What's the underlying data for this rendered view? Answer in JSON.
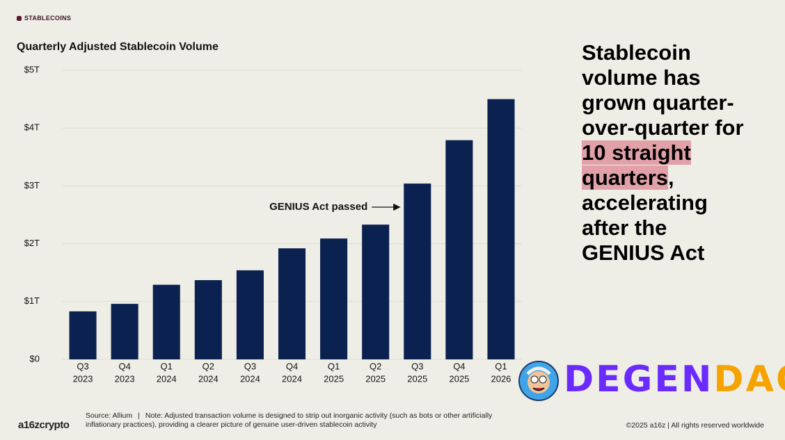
{
  "tag": "STABLECOINS",
  "chart_data": {
    "type": "bar",
    "title": "Quarterly Adjusted Stablecoin Volume",
    "categories": [
      [
        "Q3",
        "2023"
      ],
      [
        "Q4",
        "2023"
      ],
      [
        "Q1",
        "2024"
      ],
      [
        "Q2",
        "2024"
      ],
      [
        "Q3",
        "2024"
      ],
      [
        "Q4",
        "2024"
      ],
      [
        "Q1",
        "2025"
      ],
      [
        "Q2",
        "2025"
      ],
      [
        "Q3",
        "2025"
      ],
      [
        "Q4",
        "2025"
      ],
      [
        "Q1",
        "2026"
      ]
    ],
    "values": [
      0.83,
      0.96,
      1.29,
      1.37,
      1.54,
      1.92,
      2.09,
      2.33,
      3.04,
      3.79,
      4.5
    ],
    "color": "#0b2150",
    "ylim": [
      0,
      5
    ],
    "yticks": [
      {
        "value": 0,
        "label": "$0"
      },
      {
        "value": 1,
        "label": "$1T"
      },
      {
        "value": 2,
        "label": "$2T"
      },
      {
        "value": 3,
        "label": "$3T"
      },
      {
        "value": 4,
        "label": "$4T"
      },
      {
        "value": 5,
        "label": "$5T"
      }
    ],
    "grid": true,
    "annotation": "GENIUS Act passed"
  },
  "headline": {
    "before": "Stablecoin volume has grown quarter-over-quarter for ",
    "highlight": "10 straight quarters",
    "after": ", accelerating after the GENIUS Act"
  },
  "footer": {
    "source": "Source: Allium",
    "note": "Note: Adjusted transaction volume is designed to strip out inorganic activity (such as bots or other artificially inflationary practices), providing a clearer picture of genuine user-driven stablecoin activity",
    "logo": "a16zcrypto",
    "copyright": "©2025 a16z | All rights reserved worldwide"
  },
  "badge": {
    "first": "DEGEN",
    "second": "DAO!"
  }
}
